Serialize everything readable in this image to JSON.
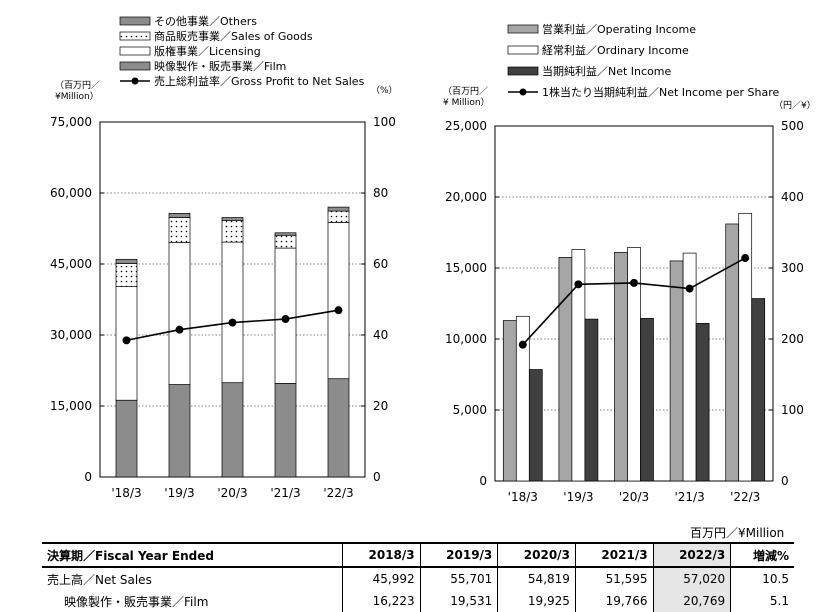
{
  "chart_data": [
    {
      "type": "bar",
      "stacked": true,
      "categories": [
        "'18/3",
        "'19/3",
        "'20/3",
        "'21/3",
        "'22/3"
      ],
      "y_left_label": "（百万円／\n¥Million）",
      "y_right_label": "（%）",
      "y_left_range": [
        0,
        75000
      ],
      "y_left_ticks": [
        "0",
        "15,000",
        "30,000",
        "45,000",
        "60,000",
        "75,000"
      ],
      "y_right_range": [
        0,
        100
      ],
      "y_right_ticks": [
        "0",
        "20",
        "40",
        "60",
        "80",
        "100"
      ],
      "grid": true,
      "legend_position": "top-left",
      "series": [
        {
          "name": "映像製作・販売事業／Film",
          "kind": "bar",
          "fill": "#8c8c8c",
          "values": [
            16223,
            19531,
            19925,
            19766,
            20769
          ]
        },
        {
          "name": "版権事業／Licensing",
          "kind": "bar",
          "fill": "#ffffff",
          "values": [
            24000,
            30000,
            29700,
            28600,
            33000
          ]
        },
        {
          "name": "商品販売事業／Sales of Goods",
          "kind": "bar",
          "fill": "dots",
          "values": [
            4900,
            5300,
            4600,
            2700,
            2400
          ]
        },
        {
          "name": "その他事業／Others",
          "kind": "bar",
          "fill": "#8c8c8c",
          "values": [
            869,
            870,
            594,
            529,
            851
          ]
        },
        {
          "name": "売上総利益率／Gross Profit to Net Sales",
          "kind": "line",
          "axis": "right",
          "values": [
            38.5,
            41.5,
            43.5,
            44.5,
            47.0
          ]
        }
      ],
      "legend_order": [
        3,
        2,
        1,
        0,
        4
      ]
    },
    {
      "type": "bar",
      "categories": [
        "'18/3",
        "'19/3",
        "'20/3",
        "'21/3",
        "'22/3"
      ],
      "y_left_label": "（百万円／\n¥ Million）",
      "y_right_label": "（円／¥）",
      "y_left_range": [
        0,
        25000
      ],
      "y_left_ticks": [
        "0",
        "5,000",
        "10,000",
        "15,000",
        "20,000",
        "25,000"
      ],
      "y_right_range": [
        0,
        500
      ],
      "y_right_ticks": [
        "0",
        "100",
        "200",
        "300",
        "400",
        "500"
      ],
      "grid": true,
      "legend_position": "top-left",
      "series": [
        {
          "name": "営業利益／Operating Income",
          "kind": "bar",
          "fill": "#a6a6a6",
          "values": [
            11300,
            15750,
            16100,
            15500,
            18100
          ]
        },
        {
          "name": "経常利益／Ordinary Income",
          "kind": "bar",
          "fill": "#ffffff",
          "values": [
            11600,
            16300,
            16450,
            16050,
            18850
          ]
        },
        {
          "name": "当期純利益／Net Income",
          "kind": "bar",
          "fill": "#404040",
          "values": [
            7850,
            11400,
            11450,
            11100,
            12850
          ]
        },
        {
          "name": "1株当たり当期純利益／Net Income per Share",
          "kind": "line",
          "axis": "right",
          "values": [
            192,
            277,
            279,
            271,
            314
          ]
        }
      ],
      "legend_order": [
        0,
        1,
        2,
        3
      ]
    }
  ],
  "table": {
    "unit": "百万円／¥Million",
    "header": [
      "決算期／Fiscal Year Ended",
      "2018/3",
      "2019/3",
      "2020/3",
      "2021/3",
      "2022/3",
      "増減%"
    ],
    "rows": [
      {
        "label": "売上高／Net Sales",
        "cells": [
          "45,992",
          "55,701",
          "54,819",
          "51,595",
          "57,020",
          "10.5"
        ]
      },
      {
        "label": "映像製作・販売事業／Film",
        "cells": [
          "16,223",
          "19,531",
          "19,925",
          "19,766",
          "20,769",
          "5.1"
        ]
      }
    ]
  }
}
